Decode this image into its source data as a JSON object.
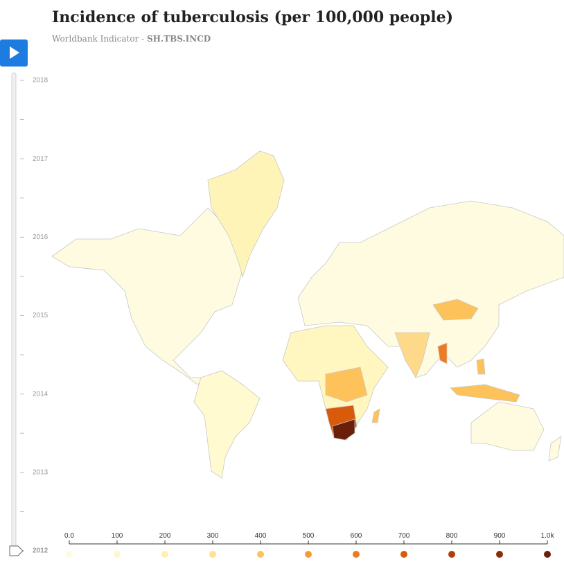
{
  "header": {
    "title": "Incidence of tuberculosis (per 100,000 people)",
    "subtitle_prefix": "Worldbank Indicator - ",
    "subtitle_code": "SH.TBS.INCD"
  },
  "chart_data": {
    "type": "choropleth",
    "timeline": {
      "years": [
        2018,
        2017,
        2016,
        2015,
        2014,
        2013,
        2012
      ],
      "ylim": [
        2012,
        2018
      ]
    },
    "legend": {
      "xlim": [
        0,
        1000
      ],
      "ticks": [
        {
          "value": 0,
          "label": "0.0"
        },
        100,
        200,
        300,
        400,
        500,
        600,
        700,
        800,
        900,
        {
          "value": 1000,
          "label": "1.0k"
        }
      ],
      "colors": [
        "#fffbe0",
        "#fff7c8",
        "#fff0b0",
        "#fee391",
        "#fdc35a",
        "#fb9a30",
        "#f07a20",
        "#d95a0a",
        "#b04006",
        "#8a2c05",
        "#6a1f0a"
      ]
    }
  }
}
